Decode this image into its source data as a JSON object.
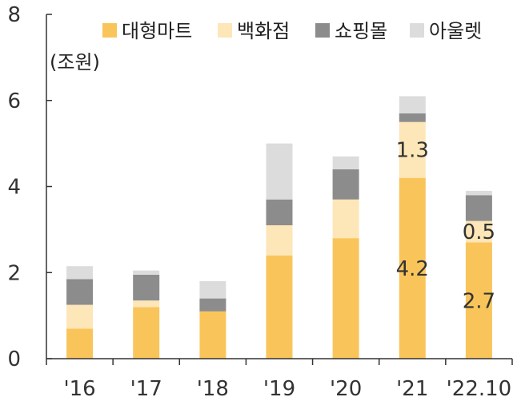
{
  "chart_data": {
    "type": "bar",
    "stacked": true,
    "unit_label": "(조원)",
    "categories": [
      "'16",
      "'17",
      "'18",
      "'19",
      "'20",
      "'21",
      "'22.10"
    ],
    "ylim": [
      0,
      8
    ],
    "yticks": [
      0,
      2,
      4,
      6,
      8
    ],
    "legend_position": "top",
    "grid": false,
    "series": [
      {
        "name": "대형마트",
        "color": "#F9C55B",
        "values": [
          0.7,
          1.2,
          1.1,
          2.4,
          2.8,
          4.2,
          2.7
        ]
      },
      {
        "name": "백화점",
        "color": "#FDE6B7",
        "values": [
          0.55,
          0.15,
          0.0,
          0.7,
          0.9,
          1.3,
          0.5
        ]
      },
      {
        "name": "쇼핑몰",
        "color": "#8C8C8C",
        "values": [
          0.6,
          0.6,
          0.3,
          0.6,
          0.7,
          0.2,
          0.6
        ]
      },
      {
        "name": "아울렛",
        "color": "#DCDCDC",
        "values": [
          0.3,
          0.1,
          0.4,
          1.3,
          0.3,
          0.4,
          0.1
        ]
      }
    ],
    "data_labels": [
      {
        "category": "'21",
        "series": "대형마트",
        "text": "4.2"
      },
      {
        "category": "'21",
        "series": "백화점",
        "text": "1.3"
      },
      {
        "category": "'22.10",
        "series": "대형마트",
        "text": "2.7"
      },
      {
        "category": "'22.10",
        "series": "백화점",
        "text": "0.5"
      }
    ]
  }
}
